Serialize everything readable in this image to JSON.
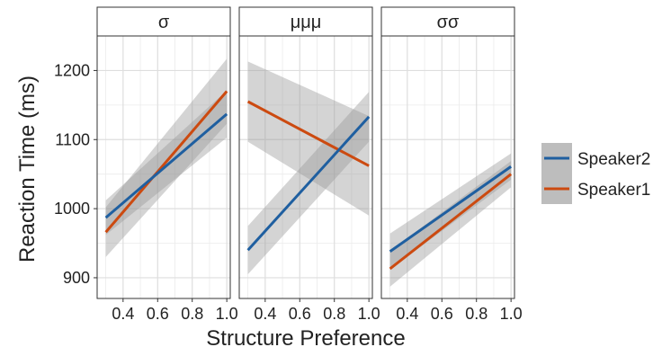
{
  "chart_data": {
    "type": "line",
    "xlabel": "Structure Preference",
    "ylabel": "Reaction Time (ms)",
    "xlim": [
      0.25,
      1.02
    ],
    "ylim": [
      870,
      1250
    ],
    "x_ticks": [
      "0.4",
      "0.6",
      "0.8",
      "1.0"
    ],
    "x_tick_values": [
      0.4,
      0.6,
      0.8,
      1.0
    ],
    "y_ticks": [
      "900",
      "1000",
      "1100",
      "1200"
    ],
    "y_tick_values": [
      900,
      1000,
      1100,
      1200
    ],
    "grid": true,
    "confidence_bands": true,
    "legend_position": "right",
    "legend": [
      {
        "name": "Speaker2",
        "color": "#1f5fa0"
      },
      {
        "name": "Speaker1",
        "color": "#cc4a10"
      }
    ],
    "panels": [
      {
        "title": "σ",
        "series": [
          {
            "name": "Speaker2",
            "x": [
              0.3,
              1.0
            ],
            "y": [
              987,
              1137
            ],
            "ci_lower": [
              962,
              1103
            ],
            "ci_upper": [
              1012,
              1171
            ]
          },
          {
            "name": "Speaker1",
            "x": [
              0.3,
              1.0
            ],
            "y": [
              966,
              1170
            ],
            "ci_lower": [
              930,
              1123
            ],
            "ci_upper": [
              1002,
              1217
            ]
          }
        ]
      },
      {
        "title": "μμμ",
        "series": [
          {
            "name": "Speaker2",
            "x": [
              0.3,
              1.0
            ],
            "y": [
              940,
              1133
            ],
            "ci_lower": [
              905,
              1097
            ],
            "ci_upper": [
              975,
              1169
            ]
          },
          {
            "name": "Speaker1",
            "x": [
              0.3,
              1.0
            ],
            "y": [
              1155,
              1062
            ],
            "ci_lower": [
              1097,
              990
            ],
            "ci_upper": [
              1213,
              1134
            ]
          }
        ]
      },
      {
        "title": "σσ",
        "series": [
          {
            "name": "Speaker2",
            "x": [
              0.3,
              1.0
            ],
            "y": [
              938,
              1061
            ],
            "ci_lower": [
              912,
              1042
            ],
            "ci_upper": [
              964,
              1080
            ]
          },
          {
            "name": "Speaker1",
            "x": [
              0.3,
              1.0
            ],
            "y": [
              913,
              1050
            ],
            "ci_lower": [
              887,
              1031
            ],
            "ci_upper": [
              939,
              1069
            ]
          }
        ]
      }
    ]
  }
}
